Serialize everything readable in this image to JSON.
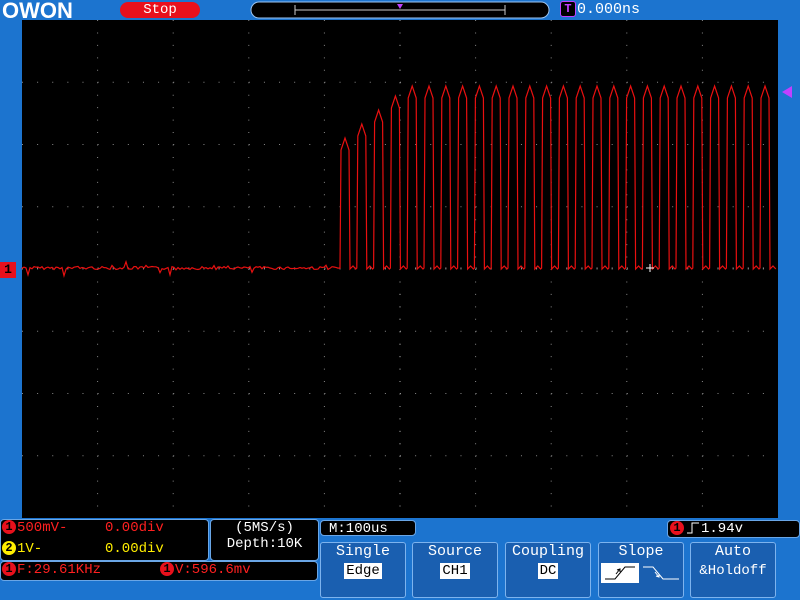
{
  "header": {
    "logo": "OWON",
    "status": "Stop",
    "trigger_marker": "T",
    "trigger_time": "0.000ns"
  },
  "screen": {
    "channel_marker": "1"
  },
  "status_panel": {
    "ch1": {
      "badge": "1",
      "scale": "500mV-",
      "offset": "0.00div"
    },
    "ch2": {
      "badge": "2",
      "scale": "1V-",
      "offset": "0.00div"
    },
    "measurements": [
      {
        "badge": "1",
        "text": "F:29.61KHz"
      },
      {
        "badge": "1",
        "text": "V:596.6mv"
      }
    ],
    "sampling": {
      "rate": "(5MS/s)",
      "depth": "Depth:10K"
    },
    "timebase": "M:100us",
    "trigger_level": {
      "badge": "1",
      "level": "1.94v"
    }
  },
  "menu": [
    {
      "label": "Single",
      "value": "Edge"
    },
    {
      "label": "Source",
      "value": "CH1"
    },
    {
      "label": "Coupling",
      "value": "DC"
    },
    {
      "label": "Slope"
    },
    {
      "label": "Auto",
      "value": "&Holdoff"
    }
  ]
}
